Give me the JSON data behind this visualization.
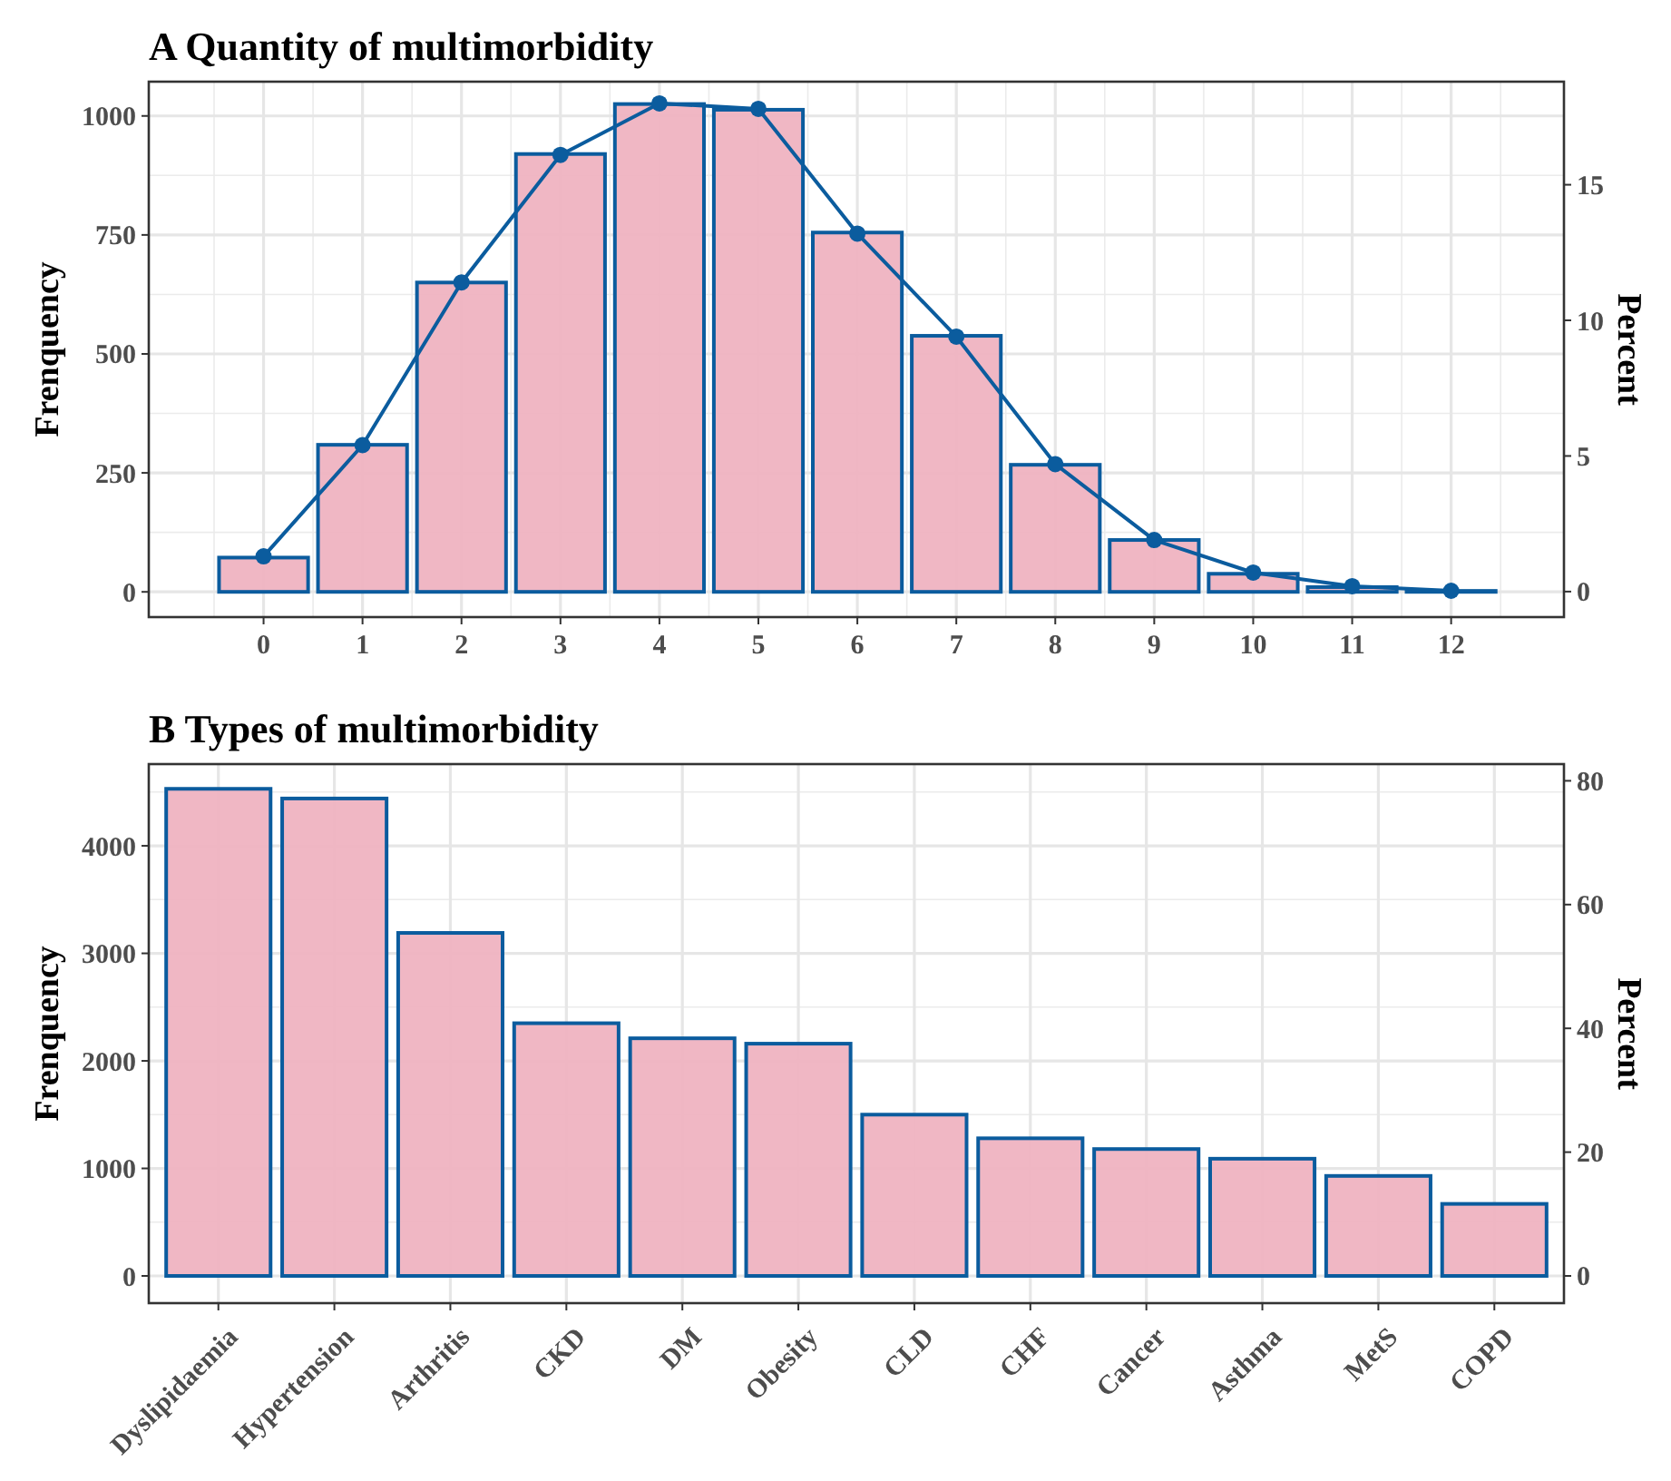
{
  "chart_data": [
    {
      "type": "bar",
      "title": "A  Quantity of multimorbidity",
      "ylabel": "Frenquency",
      "y2label": "Percent",
      "x": [
        0,
        1,
        2,
        3,
        4,
        5,
        6,
        7,
        8,
        9,
        10,
        11,
        12
      ],
      "xlim": [
        -1.16,
        13.14
      ],
      "xticks": [
        0,
        1,
        2,
        3,
        4,
        5,
        6,
        7,
        8,
        9,
        10,
        11,
        12
      ],
      "ylim": [
        -53,
        1072
      ],
      "yticks": [
        0,
        250,
        500,
        750,
        1000
      ],
      "y2lim": [
        -0.94,
        18.8
      ],
      "y2ticks": [
        0,
        5,
        10,
        15
      ],
      "grid": true,
      "marker": "circle",
      "series": [
        {
          "type": "bar",
          "color": "#efb3c1",
          "values": [
            72,
            309,
            650,
            920,
            1025,
            1013,
            755,
            538,
            267,
            109,
            38,
            10,
            2
          ]
        },
        {
          "type": "line",
          "axis": "y2",
          "color": "#0b5c9e",
          "values": [
            1.3,
            5.4,
            11.4,
            16.1,
            18.0,
            17.8,
            13.2,
            9.4,
            4.7,
            1.9,
            0.7,
            0.2,
            0.03
          ]
        }
      ]
    },
    {
      "type": "bar",
      "title": "B  Types of multimorbidity",
      "ylabel": "Frenquency",
      "y2label": "Percent",
      "categories": [
        "Dyslipidaemia",
        "Hypertension",
        "Arthritis",
        "CKD",
        "DM",
        "Obesity",
        "CLD",
        "CHF",
        "Cancer",
        "Asthma",
        "MetS",
        "COPD"
      ],
      "values": [
        4530,
        4440,
        3190,
        2350,
        2210,
        2160,
        1500,
        1280,
        1180,
        1090,
        930,
        670
      ],
      "color": "#efb3c1",
      "ylim": [
        -253,
        4760
      ],
      "yticks": [
        0,
        1000,
        2000,
        3000,
        4000
      ],
      "y2lim": [
        -4.4,
        82.7
      ],
      "y2ticks": [
        0,
        20,
        40,
        60,
        80
      ],
      "grid": true
    }
  ]
}
